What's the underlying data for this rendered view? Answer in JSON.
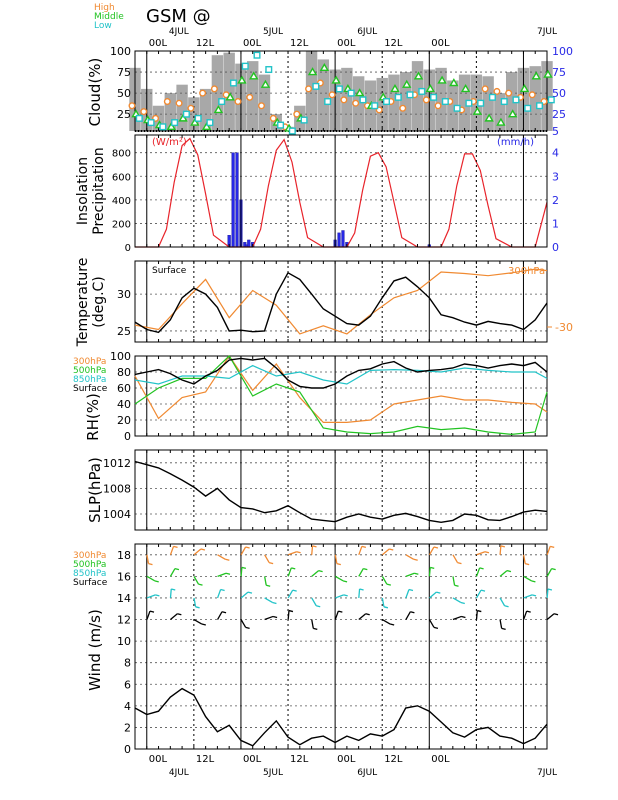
{
  "title": "GSM  @",
  "top_axis": {
    "dates": [
      "4JUL",
      "5JUL",
      "6JUL",
      "7JUL"
    ],
    "times": [
      "00L",
      "12L",
      "00L",
      "12L",
      "00L",
      "12L",
      "00L"
    ]
  },
  "bottom_axis": {
    "dates": [
      "4JUL",
      "5JUL",
      "6JUL",
      "7JUL"
    ],
    "times": [
      "00L",
      "12L",
      "00L",
      "12L",
      "00L",
      "12L",
      "00L"
    ]
  },
  "colors": {
    "high": "#f08a32",
    "middle": "#22c322",
    "low": "#22c3c8",
    "surface": "#000000",
    "insolation": "#e8242b",
    "precip": "#2828e6",
    "cloud_bar": "#a8a8a8",
    "axis_blue": "#2828e6"
  },
  "chart_data": [
    {
      "type": "bar",
      "name": "cloud",
      "ylabel": "Cloud(%)",
      "legend": [
        "High",
        "Middle",
        "Low"
      ],
      "ylim": [
        5,
        100
      ],
      "yticks_left": [
        "100",
        "75",
        "50",
        "25"
      ],
      "yticks_right": [
        "100",
        "75",
        "50",
        "25",
        "5"
      ],
      "x_hours": [
        0,
        3,
        6,
        9,
        12,
        15,
        18,
        21,
        24,
        27,
        30,
        33,
        36,
        39,
        42,
        45,
        48,
        51,
        54,
        57,
        60,
        63,
        66,
        69,
        72,
        75,
        78,
        81,
        84,
        87,
        90,
        93,
        96,
        99,
        102,
        105
      ],
      "total": [
        80,
        55,
        35,
        50,
        60,
        45,
        55,
        95,
        98,
        85,
        88,
        72,
        25,
        10,
        35,
        100,
        90,
        78,
        80,
        70,
        65,
        68,
        72,
        75,
        88,
        78,
        80,
        65,
        72,
        72,
        70,
        50,
        75,
        80,
        82,
        88
      ],
      "series": [
        {
          "name": "High",
          "values": [
            35,
            28,
            20,
            40,
            38,
            32,
            50,
            55,
            48,
            40,
            45,
            35,
            20,
            10,
            25,
            55,
            62,
            48,
            42,
            38,
            35,
            30,
            40,
            32,
            48,
            42,
            35,
            40,
            30,
            40,
            55,
            52,
            50,
            45,
            48,
            40
          ]
        },
        {
          "name": "Middle",
          "values": [
            25,
            18,
            12,
            10,
            20,
            15,
            10,
            30,
            45,
            65,
            70,
            60,
            15,
            8,
            20,
            75,
            80,
            65,
            55,
            50,
            35,
            45,
            55,
            60,
            70,
            55,
            65,
            62,
            55,
            28,
            20,
            15,
            25,
            55,
            70,
            72
          ]
        },
        {
          "name": "Low",
          "values": [
            20,
            15,
            10,
            15,
            25,
            20,
            15,
            40,
            62,
            82,
            95,
            78,
            12,
            5,
            18,
            58,
            40,
            55,
            50,
            42,
            35,
            40,
            45,
            48,
            52,
            45,
            40,
            32,
            38,
            38,
            45,
            40,
            42,
            32,
            35,
            42
          ]
        }
      ]
    },
    {
      "type": "line",
      "name": "insolation-precipitation",
      "ylabel": "Insolation\nPrecipitation",
      "left_unit": "(W/m²)",
      "right_unit": "(mm/h)",
      "ylim_left": [
        0,
        950
      ],
      "ylim_right": [
        0,
        4.75
      ],
      "yticks_left": [
        "800",
        "600",
        "400",
        "200",
        "0"
      ],
      "yticks_right": [
        "4",
        "3",
        "2",
        "1",
        "0"
      ],
      "insolation": {
        "x": [
          0,
          3,
          6,
          8,
          10,
          12,
          14,
          16,
          18,
          20,
          24,
          27,
          30,
          32,
          34,
          36,
          38,
          40,
          42,
          44,
          48,
          51,
          54,
          56,
          58,
          60,
          62,
          64,
          66,
          68,
          72,
          75,
          78,
          80,
          82,
          84,
          86,
          88,
          90,
          92,
          96,
          99,
          102,
          105
        ],
        "y": [
          0,
          0,
          0,
          150,
          550,
          860,
          920,
          780,
          450,
          100,
          0,
          0,
          0,
          150,
          520,
          820,
          910,
          720,
          380,
          80,
          0,
          0,
          0,
          120,
          480,
          770,
          800,
          680,
          380,
          80,
          0,
          0,
          0,
          150,
          520,
          790,
          790,
          650,
          350,
          70,
          0,
          0,
          0,
          380
        ]
      },
      "precip": {
        "x": [
          24,
          25,
          26,
          27,
          28,
          28.5,
          29,
          30,
          31,
          51,
          52,
          53,
          54,
          75
        ],
        "y": [
          0.5,
          4.0,
          4.0,
          2.0,
          0.2,
          0.1,
          0.3,
          0.2,
          0,
          0.3,
          0.6,
          0.7,
          0.2,
          0.1
        ]
      }
    },
    {
      "type": "line",
      "name": "temperature",
      "ylabel": "Temperature\n(deg.C)",
      "yticks_left": [
        "30",
        "25"
      ],
      "ylim": [
        23.5,
        34.5
      ],
      "surface_label": "Surface",
      "upper_label": "300hPa",
      "upper_tick": "-30",
      "series": [
        {
          "name": "Surface",
          "x": [
            0,
            3,
            6,
            9,
            12,
            15,
            18,
            21,
            24,
            27,
            30,
            33,
            36,
            39,
            42,
            45,
            48,
            51,
            54,
            57,
            60,
            63,
            66,
            69,
            72,
            75,
            78,
            81,
            84,
            87,
            90,
            93,
            96,
            99,
            102,
            105
          ],
          "y": [
            26.2,
            25.2,
            24.8,
            26.5,
            29.5,
            30.8,
            30.0,
            28.2,
            25.0,
            25.1,
            24.9,
            25.0,
            30.0,
            32.9,
            32.0,
            30.0,
            28.0,
            27.0,
            26.0,
            25.8,
            27.0,
            29.5,
            31.8,
            32.3,
            31.0,
            29.5,
            27.2,
            26.8,
            26.2,
            25.8,
            26.3,
            26.0,
            25.8,
            25.2,
            26.5,
            28.8
          ]
        },
        {
          "name": "300hPa",
          "x": [
            0,
            6,
            12,
            18,
            24,
            30,
            36,
            42,
            48,
            54,
            60,
            66,
            72,
            78,
            84,
            90,
            96,
            102,
            105
          ],
          "y": [
            25.8,
            25.2,
            28.7,
            32.0,
            26.8,
            30.5,
            28.5,
            24.6,
            25.7,
            24.6,
            27.2,
            29.5,
            30.5,
            33.0,
            32.8,
            32.5,
            32.9,
            33.4,
            33.2
          ]
        }
      ]
    },
    {
      "type": "line",
      "name": "rh",
      "ylabel": "RH(%)",
      "legend": [
        "300hPa",
        "500hPa",
        "850hPa",
        "Surface"
      ],
      "ylim": [
        0,
        100
      ],
      "yticks_left": [
        "100",
        "80",
        "60",
        "40",
        "20",
        "0"
      ],
      "series": [
        {
          "name": "300hPa",
          "x": [
            0,
            6,
            12,
            18,
            24,
            30,
            36,
            42,
            48,
            54,
            60,
            66,
            72,
            78,
            84,
            90,
            96,
            102,
            105
          ],
          "y": [
            75,
            22,
            48,
            55,
            100,
            57,
            90,
            48,
            17,
            17,
            20,
            40,
            45,
            50,
            45,
            45,
            42,
            40,
            30
          ]
        },
        {
          "name": "500hPa",
          "x": [
            0,
            6,
            12,
            18,
            24,
            30,
            36,
            42,
            48,
            54,
            60,
            66,
            72,
            78,
            84,
            90,
            96,
            102,
            105
          ],
          "y": [
            40,
            60,
            72,
            72,
            100,
            50,
            65,
            55,
            10,
            5,
            3,
            5,
            12,
            8,
            10,
            5,
            2,
            5,
            55
          ]
        },
        {
          "name": "850hPa",
          "x": [
            0,
            6,
            12,
            18,
            24,
            30,
            36,
            42,
            48,
            54,
            60,
            66,
            72,
            78,
            84,
            90,
            96,
            102,
            105
          ],
          "y": [
            70,
            65,
            75,
            75,
            72,
            88,
            75,
            80,
            70,
            65,
            82,
            83,
            82,
            80,
            85,
            82,
            80,
            80,
            72
          ]
        },
        {
          "name": "Surface",
          "x": [
            0,
            3,
            6,
            9,
            12,
            15,
            18,
            21,
            24,
            27,
            30,
            33,
            36,
            39,
            42,
            45,
            48,
            51,
            54,
            57,
            60,
            63,
            66,
            69,
            72,
            75,
            78,
            81,
            84,
            87,
            90,
            93,
            96,
            99,
            102,
            105
          ],
          "y": [
            77,
            80,
            83,
            78,
            70,
            65,
            75,
            82,
            95,
            97,
            95,
            97,
            85,
            70,
            62,
            60,
            60,
            65,
            75,
            82,
            84,
            90,
            93,
            85,
            80,
            82,
            83,
            85,
            90,
            88,
            85,
            88,
            90,
            88,
            92,
            80
          ]
        }
      ]
    },
    {
      "type": "line",
      "name": "slp",
      "ylabel": "SLP(hPa)",
      "ylim": [
        1001.5,
        1014
      ],
      "yticks_left": [
        "1012",
        "1008",
        "1004"
      ],
      "series": [
        {
          "name": "Surface",
          "x": [
            0,
            3,
            6,
            9,
            12,
            15,
            18,
            21,
            24,
            27,
            30,
            33,
            36,
            39,
            42,
            45,
            48,
            51,
            54,
            57,
            60,
            63,
            66,
            69,
            72,
            75,
            78,
            81,
            84,
            87,
            90,
            93,
            96,
            99,
            102,
            105
          ],
          "y": [
            1012.2,
            1011.7,
            1011.2,
            1010.3,
            1009.3,
            1008.2,
            1006.8,
            1008.0,
            1006.2,
            1005.0,
            1004.8,
            1004.2,
            1004.5,
            1005.3,
            1004.2,
            1003.2,
            1003.0,
            1002.8,
            1003.5,
            1004.0,
            1003.5,
            1003.2,
            1003.8,
            1004.1,
            1003.6,
            1003.0,
            1002.7,
            1003.0,
            1004.0,
            1003.8,
            1003.1,
            1003.0,
            1003.6,
            1004.3,
            1004.6,
            1004.4
          ]
        }
      ]
    },
    {
      "type": "line",
      "name": "wind",
      "ylabel": "Wind  (m/s)",
      "legend": [
        "300hPa",
        "500hPa",
        "850hPa",
        "Surface"
      ],
      "ylim": [
        0,
        19
      ],
      "yticks_left": [
        "18",
        "16",
        "14",
        "12",
        "10",
        "8",
        "6",
        "4",
        "2",
        "0"
      ],
      "series": [
        {
          "name": "Surface",
          "x": [
            0,
            3,
            6,
            9,
            12,
            15,
            18,
            21,
            24,
            27,
            30,
            33,
            36,
            39,
            42,
            45,
            48,
            51,
            54,
            57,
            60,
            63,
            66,
            69,
            72,
            75,
            78,
            81,
            84,
            87,
            90,
            93,
            96,
            99,
            102,
            105
          ],
          "y": [
            3.8,
            3.2,
            3.5,
            4.8,
            5.6,
            5.0,
            3.0,
            1.6,
            2.2,
            0.8,
            0.3,
            1.5,
            2.6,
            1.1,
            0.4,
            1.0,
            1.2,
            0.6,
            1.2,
            0.8,
            1.4,
            1.2,
            1.8,
            3.8,
            4.0,
            3.5,
            2.5,
            1.5,
            1.1,
            1.8,
            2.0,
            1.2,
            1.0,
            0.5,
            1.0,
            2.3
          ]
        }
      ],
      "barb_x": [
        1,
        7,
        13,
        19,
        25,
        31,
        37,
        43,
        49,
        55,
        61,
        67,
        73,
        79,
        85,
        91,
        97,
        103
      ]
    }
  ]
}
